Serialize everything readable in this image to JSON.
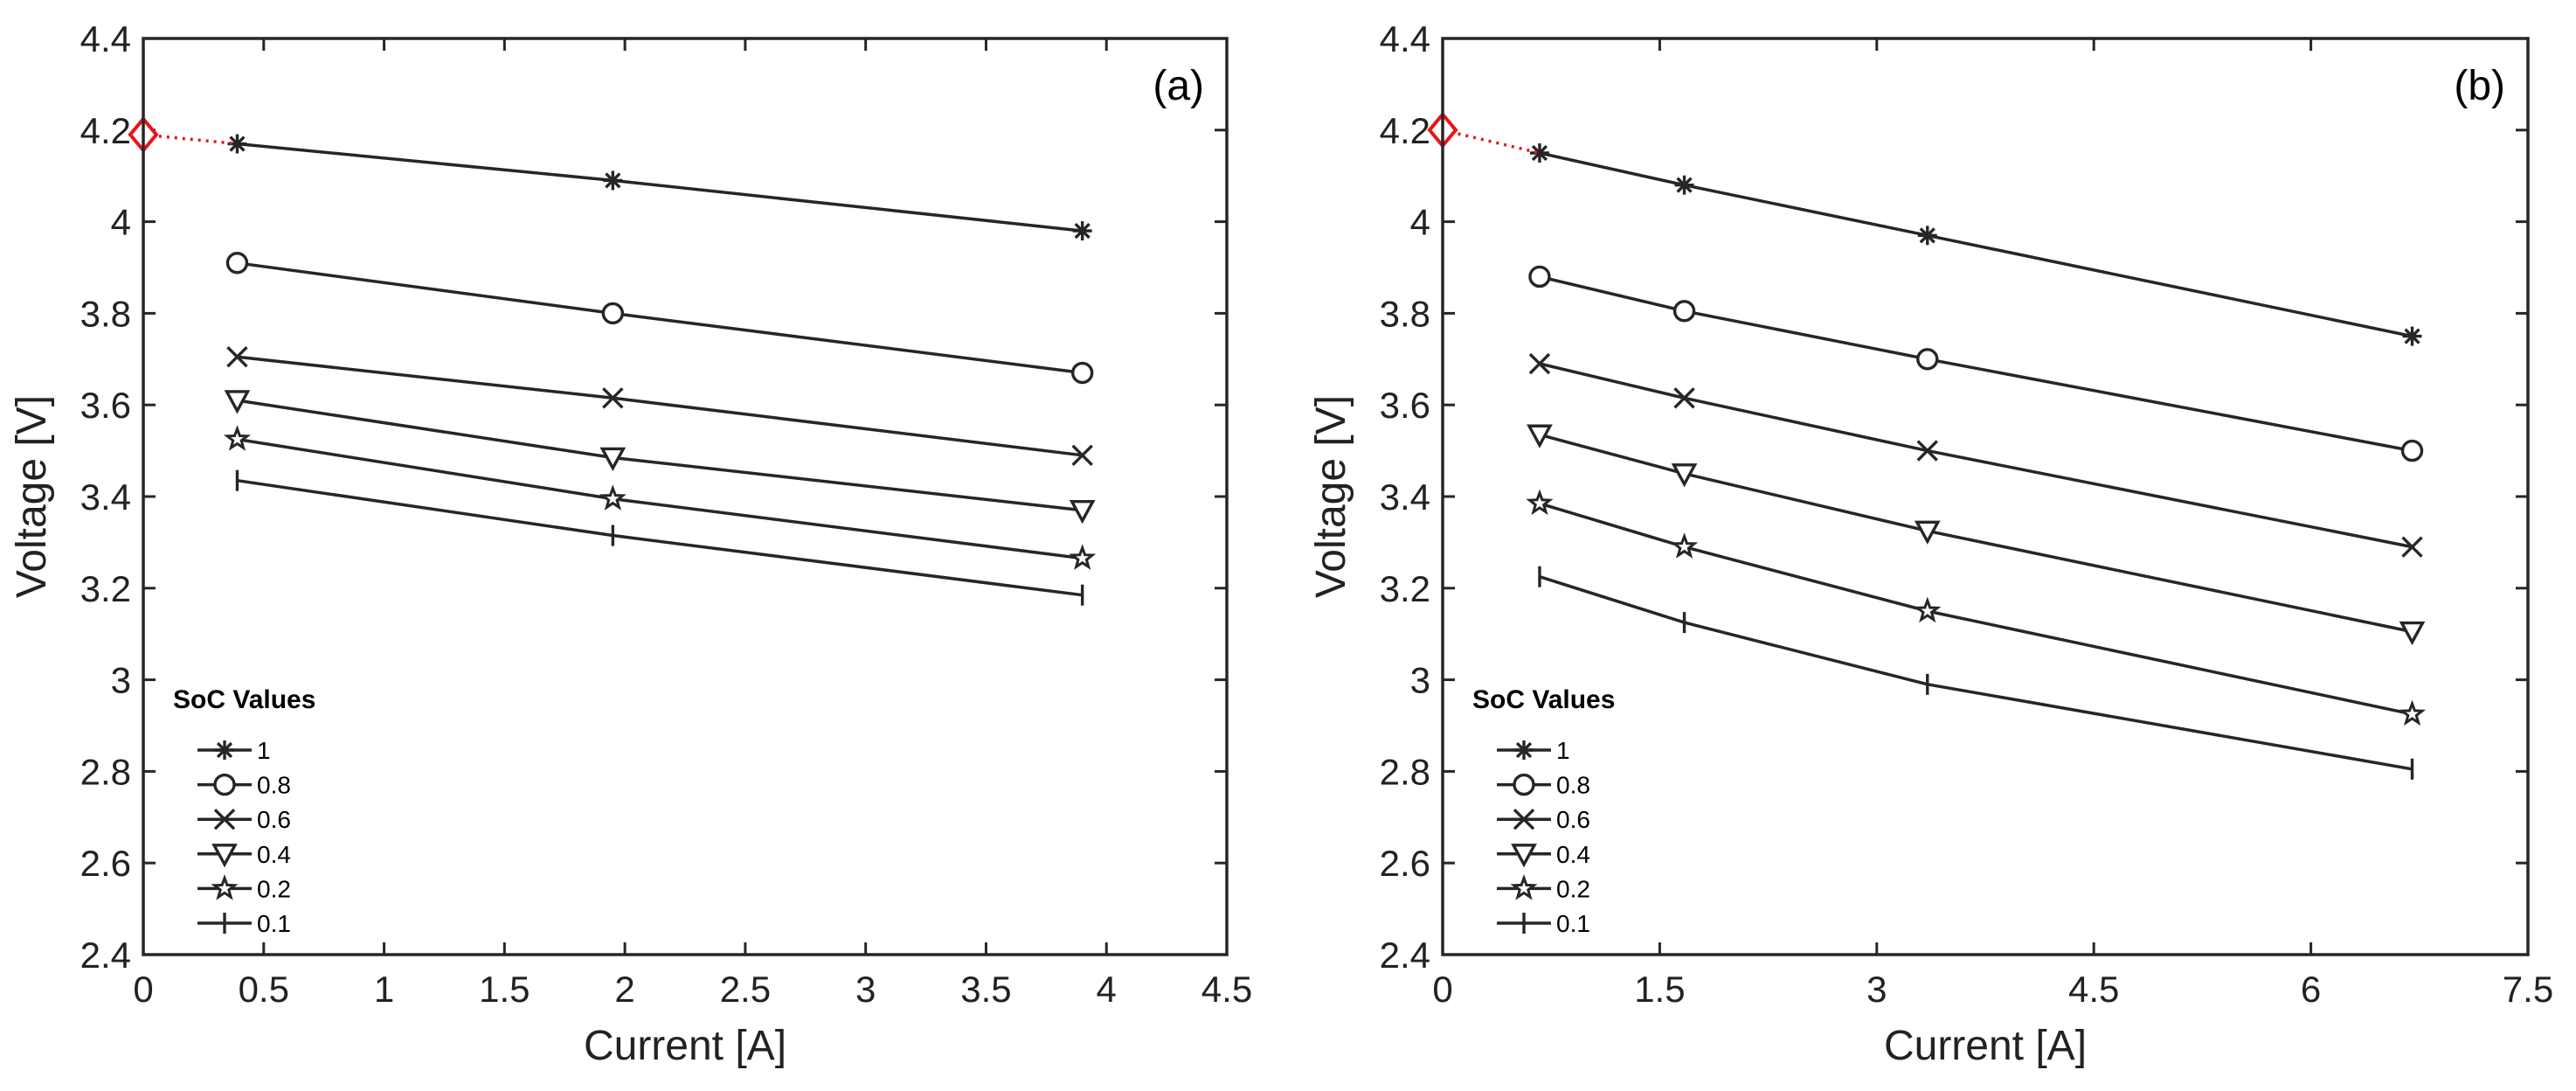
{
  "chart_data": [
    {
      "type": "line",
      "panel_label": "(a)",
      "xlabel": "Current [A]",
      "ylabel": "Voltage [V]",
      "xlim": [
        0,
        4.5
      ],
      "ylim": [
        2.4,
        4.4
      ],
      "xticks": [
        0,
        0.5,
        1,
        1.5,
        2,
        2.5,
        3,
        3.5,
        4,
        4.5
      ],
      "xtick_labels": [
        "0",
        "0.5",
        "1",
        "1.5",
        "2",
        "2.5",
        "3",
        "3.5",
        "4",
        "4.5"
      ],
      "yticks": [
        2.4,
        2.6,
        2.8,
        3,
        3.2,
        3.4,
        3.6,
        3.8,
        4,
        4.2,
        4.4
      ],
      "ytick_labels": [
        "2.4",
        "2.6",
        "2.8",
        "3",
        "3.2",
        "3.4",
        "3.6",
        "3.8",
        "4",
        "4.2",
        "4.4"
      ],
      "x": [
        0.39,
        1.95,
        3.9
      ],
      "legend_title": "SoC Values",
      "legend_location": "lower-left",
      "series": [
        {
          "name": "1",
          "marker": "asterisk",
          "values": [
            4.17,
            4.09,
            3.98
          ]
        },
        {
          "name": "0.8",
          "marker": "circle",
          "values": [
            3.91,
            3.8,
            3.67
          ]
        },
        {
          "name": "0.6",
          "marker": "x",
          "values": [
            3.705,
            3.615,
            3.49
          ]
        },
        {
          "name": "0.4",
          "marker": "triangle-down",
          "values": [
            3.61,
            3.485,
            3.37
          ]
        },
        {
          "name": "0.2",
          "marker": "star",
          "values": [
            3.525,
            3.395,
            3.265
          ]
        },
        {
          "name": "0.1",
          "marker": "vbar",
          "values": [
            3.435,
            3.315,
            3.185
          ]
        }
      ],
      "extrapolation": {
        "x": [
          0,
          0.39
        ],
        "y": [
          4.19,
          4.17
        ],
        "marker": "diamond",
        "color": "#e8141a"
      }
    },
    {
      "type": "line",
      "panel_label": "(b)",
      "xlabel": "Current [A]",
      "ylabel": "Voltage [V]",
      "xlim": [
        0,
        7.5
      ],
      "ylim": [
        2.4,
        4.4
      ],
      "xticks": [
        0,
        1.5,
        3,
        4.5,
        6,
        7.5
      ],
      "xtick_labels": [
        "0",
        "1.5",
        "3",
        "4.5",
        "6",
        "7.5"
      ],
      "yticks": [
        2.4,
        2.6,
        2.8,
        3,
        3.2,
        3.4,
        3.6,
        3.8,
        4,
        4.2,
        4.4
      ],
      "ytick_labels": [
        "2.4",
        "2.6",
        "2.8",
        "3",
        "3.2",
        "3.4",
        "3.6",
        "3.8",
        "4",
        "4.2",
        "4.4"
      ],
      "x": [
        0.67,
        1.67,
        3.35,
        6.7
      ],
      "legend_title": "SoC Values",
      "legend_location": "lower-left",
      "series": [
        {
          "name": "1",
          "marker": "asterisk",
          "values": [
            4.15,
            4.08,
            3.97,
            3.75
          ]
        },
        {
          "name": "0.8",
          "marker": "circle",
          "values": [
            3.88,
            3.805,
            3.7,
            3.5
          ]
        },
        {
          "name": "0.6",
          "marker": "x",
          "values": [
            3.69,
            3.615,
            3.5,
            3.29
          ]
        },
        {
          "name": "0.4",
          "marker": "triangle-down",
          "values": [
            3.535,
            3.45,
            3.325,
            3.105
          ]
        },
        {
          "name": "0.2",
          "marker": "star",
          "values": [
            3.385,
            3.29,
            3.15,
            2.925
          ]
        },
        {
          "name": "0.1",
          "marker": "vbar",
          "values": [
            3.225,
            3.125,
            2.99,
            2.805
          ]
        }
      ],
      "extrapolation": {
        "x": [
          0,
          0.67
        ],
        "y": [
          4.2,
          4.15
        ],
        "marker": "diamond",
        "color": "#e8141a"
      }
    }
  ],
  "colors": {
    "line": "#262626",
    "axis": "#262626",
    "extrapolation": "#e8141a",
    "background": "#ffffff"
  }
}
